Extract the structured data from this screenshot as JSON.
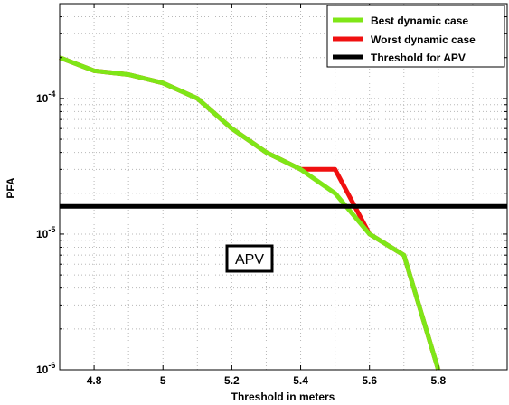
{
  "chart_data": {
    "type": "line",
    "xlabel": "Threshold in meters",
    "ylabel": "PFA",
    "xlim": [
      4.7,
      6.0
    ],
    "ylim": [
      1e-06,
      0.0005
    ],
    "yscale": "log",
    "grid": true,
    "legend_position": "top-right",
    "x_ticks": [
      4.8,
      5,
      5.2,
      5.4,
      5.6,
      5.8
    ],
    "x_tick_labels": [
      "4.8",
      "5",
      "5.2",
      "5.4",
      "5.6",
      "5.8"
    ],
    "y_ticks": [
      {
        "value": 1e-06,
        "base": "10",
        "exp": "-6"
      },
      {
        "value": 1e-05,
        "base": "10",
        "exp": "-5"
      },
      {
        "value": 0.0001,
        "base": "10",
        "exp": "-4"
      }
    ],
    "series": [
      {
        "name": "Best dynamic case",
        "color": "#7FE617",
        "x": [
          4.7,
          4.8,
          4.9,
          5.0,
          5.1,
          5.2,
          5.3,
          5.4,
          5.5,
          5.6,
          5.7,
          5.8
        ],
        "y": [
          0.0002,
          0.00016,
          0.00015,
          0.00013,
          0.0001,
          6e-05,
          4e-05,
          3e-05,
          2e-05,
          1e-05,
          7e-06,
          1e-06
        ]
      },
      {
        "name": "Worst dynamic case",
        "color": "#F01010",
        "x": [
          4.7,
          4.8,
          4.9,
          5.0,
          5.1,
          5.2,
          5.3,
          5.4,
          5.5,
          5.6,
          5.7,
          5.8
        ],
        "y": [
          0.0002,
          0.00016,
          0.00015,
          0.00013,
          0.0001,
          6e-05,
          4e-05,
          3e-05,
          3e-05,
          1e-05,
          7e-06,
          1e-06
        ]
      },
      {
        "name": "Threshold for APV",
        "color": "#000000",
        "x": [
          4.7,
          6.0
        ],
        "y": [
          1.6e-05,
          1.6e-05
        ]
      }
    ],
    "annotations": [
      {
        "text": "APV",
        "x": 5.25,
        "y": 6e-06
      }
    ]
  }
}
